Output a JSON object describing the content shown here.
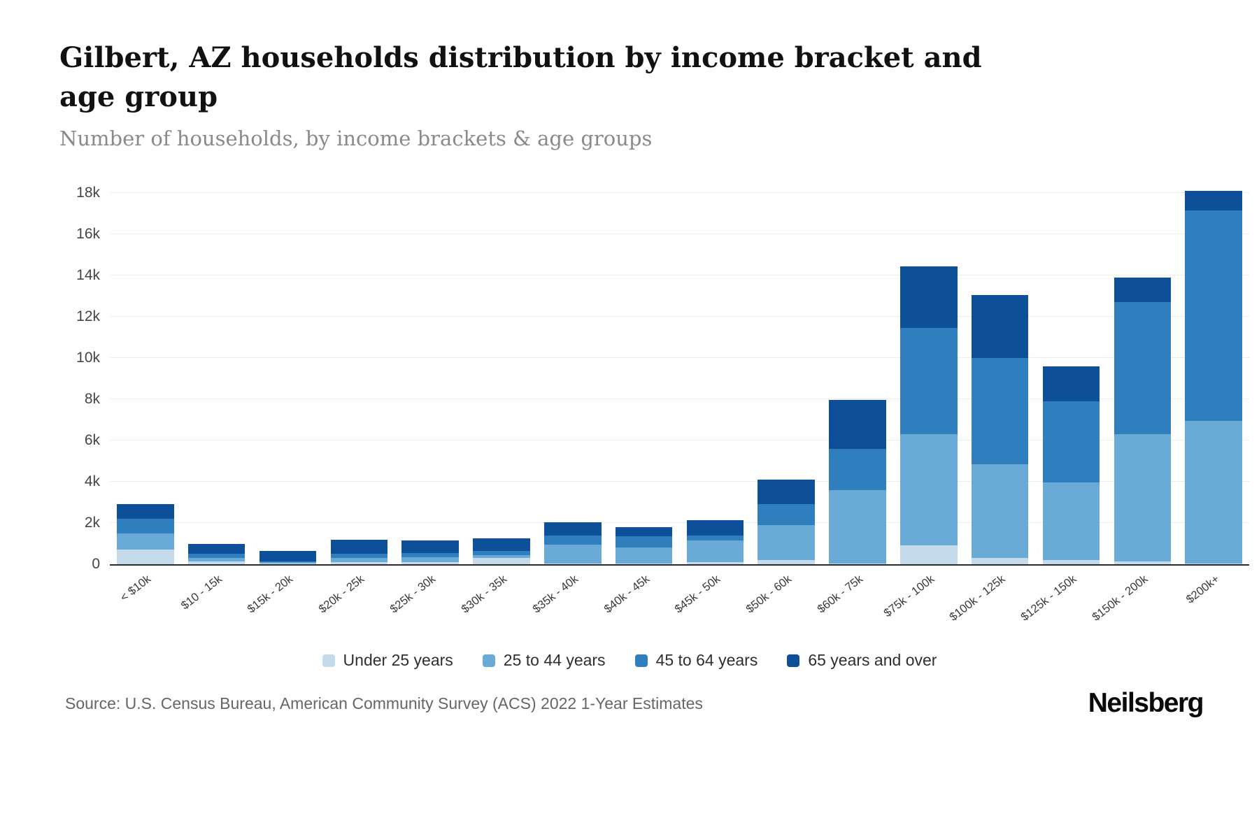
{
  "title": "Gilbert, AZ households distribution by income bracket and age group",
  "subtitle": "Number of households, by income brackets & age groups",
  "source": "Source: U.S. Census Bureau, American Community Survey (ACS) 2022 1-Year Estimates",
  "logo": "Neilsberg",
  "chart_data": {
    "type": "bar",
    "stacked": true,
    "title": "Gilbert, AZ households distribution by income bracket and age group",
    "xlabel": "",
    "ylabel": "Number of households",
    "ylim": [
      0,
      18000
    ],
    "grid": true,
    "legend_position": "bottom",
    "y_ticks": [
      "0",
      "2k",
      "4k",
      "6k",
      "8k",
      "10k",
      "12k",
      "14k",
      "16k",
      "18k"
    ],
    "y_tick_step": 2000,
    "categories": [
      "< $10k",
      "$10 - 15k",
      "$15k - 20k",
      "$20k - 25k",
      "$25k - 30k",
      "$30k - 35k",
      "$35k - 40k",
      "$40k - 45k",
      "$45k - 50k",
      "$50k - 60k",
      "$60k - 75k",
      "$75k - 100k",
      "$100k - 125k",
      "$125k - 150k",
      "$150k - 200k",
      "$200k+"
    ],
    "series": [
      {
        "name": "Under 25 years",
        "color": "#c5dbeb",
        "values": [
          700,
          150,
          50,
          100,
          100,
          300,
          50,
          50,
          100,
          200,
          50,
          900,
          300,
          200,
          150,
          50
        ]
      },
      {
        "name": "25 to 44 years",
        "color": "#6aaad6",
        "values": [
          800,
          150,
          50,
          200,
          250,
          150,
          900,
          750,
          1050,
          1700,
          3550,
          5400,
          4550,
          3750,
          6150,
          6900
        ]
      },
      {
        "name": "45 to 64 years",
        "color": "#2f7fbe",
        "values": [
          700,
          200,
          50,
          200,
          200,
          200,
          450,
          550,
          250,
          1000,
          2000,
          5150,
          5150,
          3950,
          6400,
          10200
        ]
      },
      {
        "name": "65 years and over",
        "color": "#0d4f99",
        "values": [
          700,
          500,
          500,
          700,
          600,
          600,
          650,
          450,
          750,
          1200,
          2350,
          3000,
          3050,
          1700,
          1200,
          950
        ]
      }
    ],
    "totals": [
      2900,
      1000,
      650,
      1200,
      1150,
      1250,
      2050,
      1800,
      2150,
      4100,
      7950,
      14450,
      13050,
      9600,
      13900,
      18100
    ]
  }
}
